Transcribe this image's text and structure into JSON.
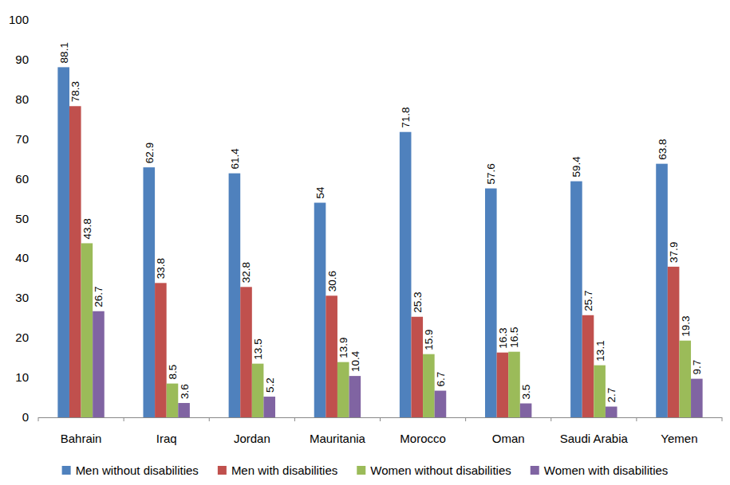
{
  "chart_data": {
    "type": "bar",
    "categories": [
      "Bahrain",
      "Iraq",
      "Jordan",
      "Mauritania",
      "Morocco",
      "Oman",
      "Saudi Arabia",
      "Yemen"
    ],
    "series": [
      {
        "name": "Men without disabilities",
        "color": "#4f81bd",
        "values": [
          88.1,
          62.9,
          61.4,
          54,
          71.8,
          57.6,
          59.4,
          63.8
        ]
      },
      {
        "name": "Men with disabilities",
        "color": "#c0504d",
        "values": [
          78.3,
          33.8,
          32.8,
          30.6,
          25.3,
          16.3,
          25.7,
          37.9
        ]
      },
      {
        "name": "Women without disabilities",
        "color": "#9bbb59",
        "values": [
          43.8,
          8.5,
          13.5,
          13.9,
          15.9,
          16.5,
          13.1,
          19.3
        ]
      },
      {
        "name": "Women with disabilities",
        "color": "#8064a2",
        "values": [
          26.7,
          3.6,
          5.2,
          10.4,
          6.7,
          3.5,
          2.7,
          9.7
        ]
      }
    ],
    "ylim": [
      0,
      100
    ],
    "yticks": [
      0,
      10,
      20,
      30,
      40,
      50,
      60,
      70,
      80,
      90,
      100
    ],
    "grid": false,
    "legend": "bottom",
    "data_labels": true
  }
}
